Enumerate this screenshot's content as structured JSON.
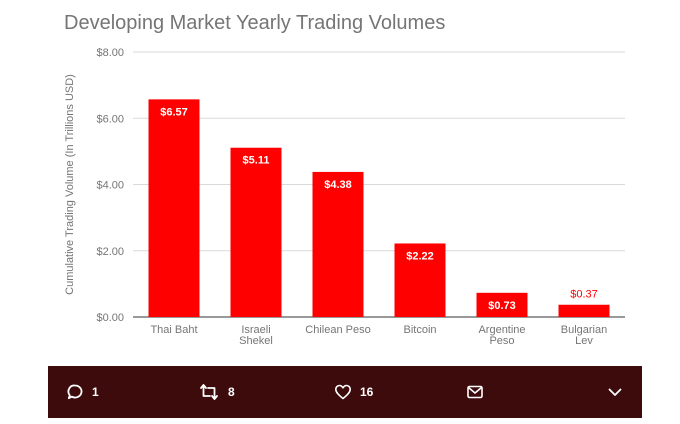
{
  "chart_data": {
    "type": "bar",
    "title": "Developing Market Yearly Trading Volumes",
    "ylabel": "Cumulative Trading Volume (In Trillions USD)",
    "xlabel": "",
    "categories": [
      "Thai Baht",
      "Israeli Shekel",
      "Chilean Peso",
      "Bitcoin",
      "Argentine Peso",
      "Bulgarian Lev"
    ],
    "values": [
      6.57,
      5.11,
      4.38,
      2.22,
      0.73,
      0.37
    ],
    "value_labels": [
      "$6.57",
      "$5.11",
      "$4.38",
      "$2.22",
      "$0.73",
      "$0.37"
    ],
    "yticks": [
      0,
      2,
      4,
      6,
      8
    ],
    "ytick_labels": [
      "$0.00",
      "$2.00",
      "$4.00",
      "$6.00",
      "$8.00"
    ],
    "ylim": [
      0,
      8
    ],
    "grid": true,
    "legend": "none",
    "colors": {
      "bar": "#ff0000",
      "label_inside": "#ffffff",
      "label_outside": "#ff0000",
      "grid": "#d9d9d9",
      "text": "#757575"
    }
  },
  "actions": {
    "reply": {
      "icon": "reply-icon",
      "count": "1"
    },
    "retweet": {
      "icon": "retweet-icon",
      "count": "8"
    },
    "like": {
      "icon": "heart-icon",
      "count": "16"
    },
    "message": {
      "icon": "envelope-icon"
    },
    "more": {
      "icon": "chevron-down-icon"
    }
  },
  "colors": {
    "action_bar": "#3d0b0b",
    "action_icon": "#ffffff"
  }
}
